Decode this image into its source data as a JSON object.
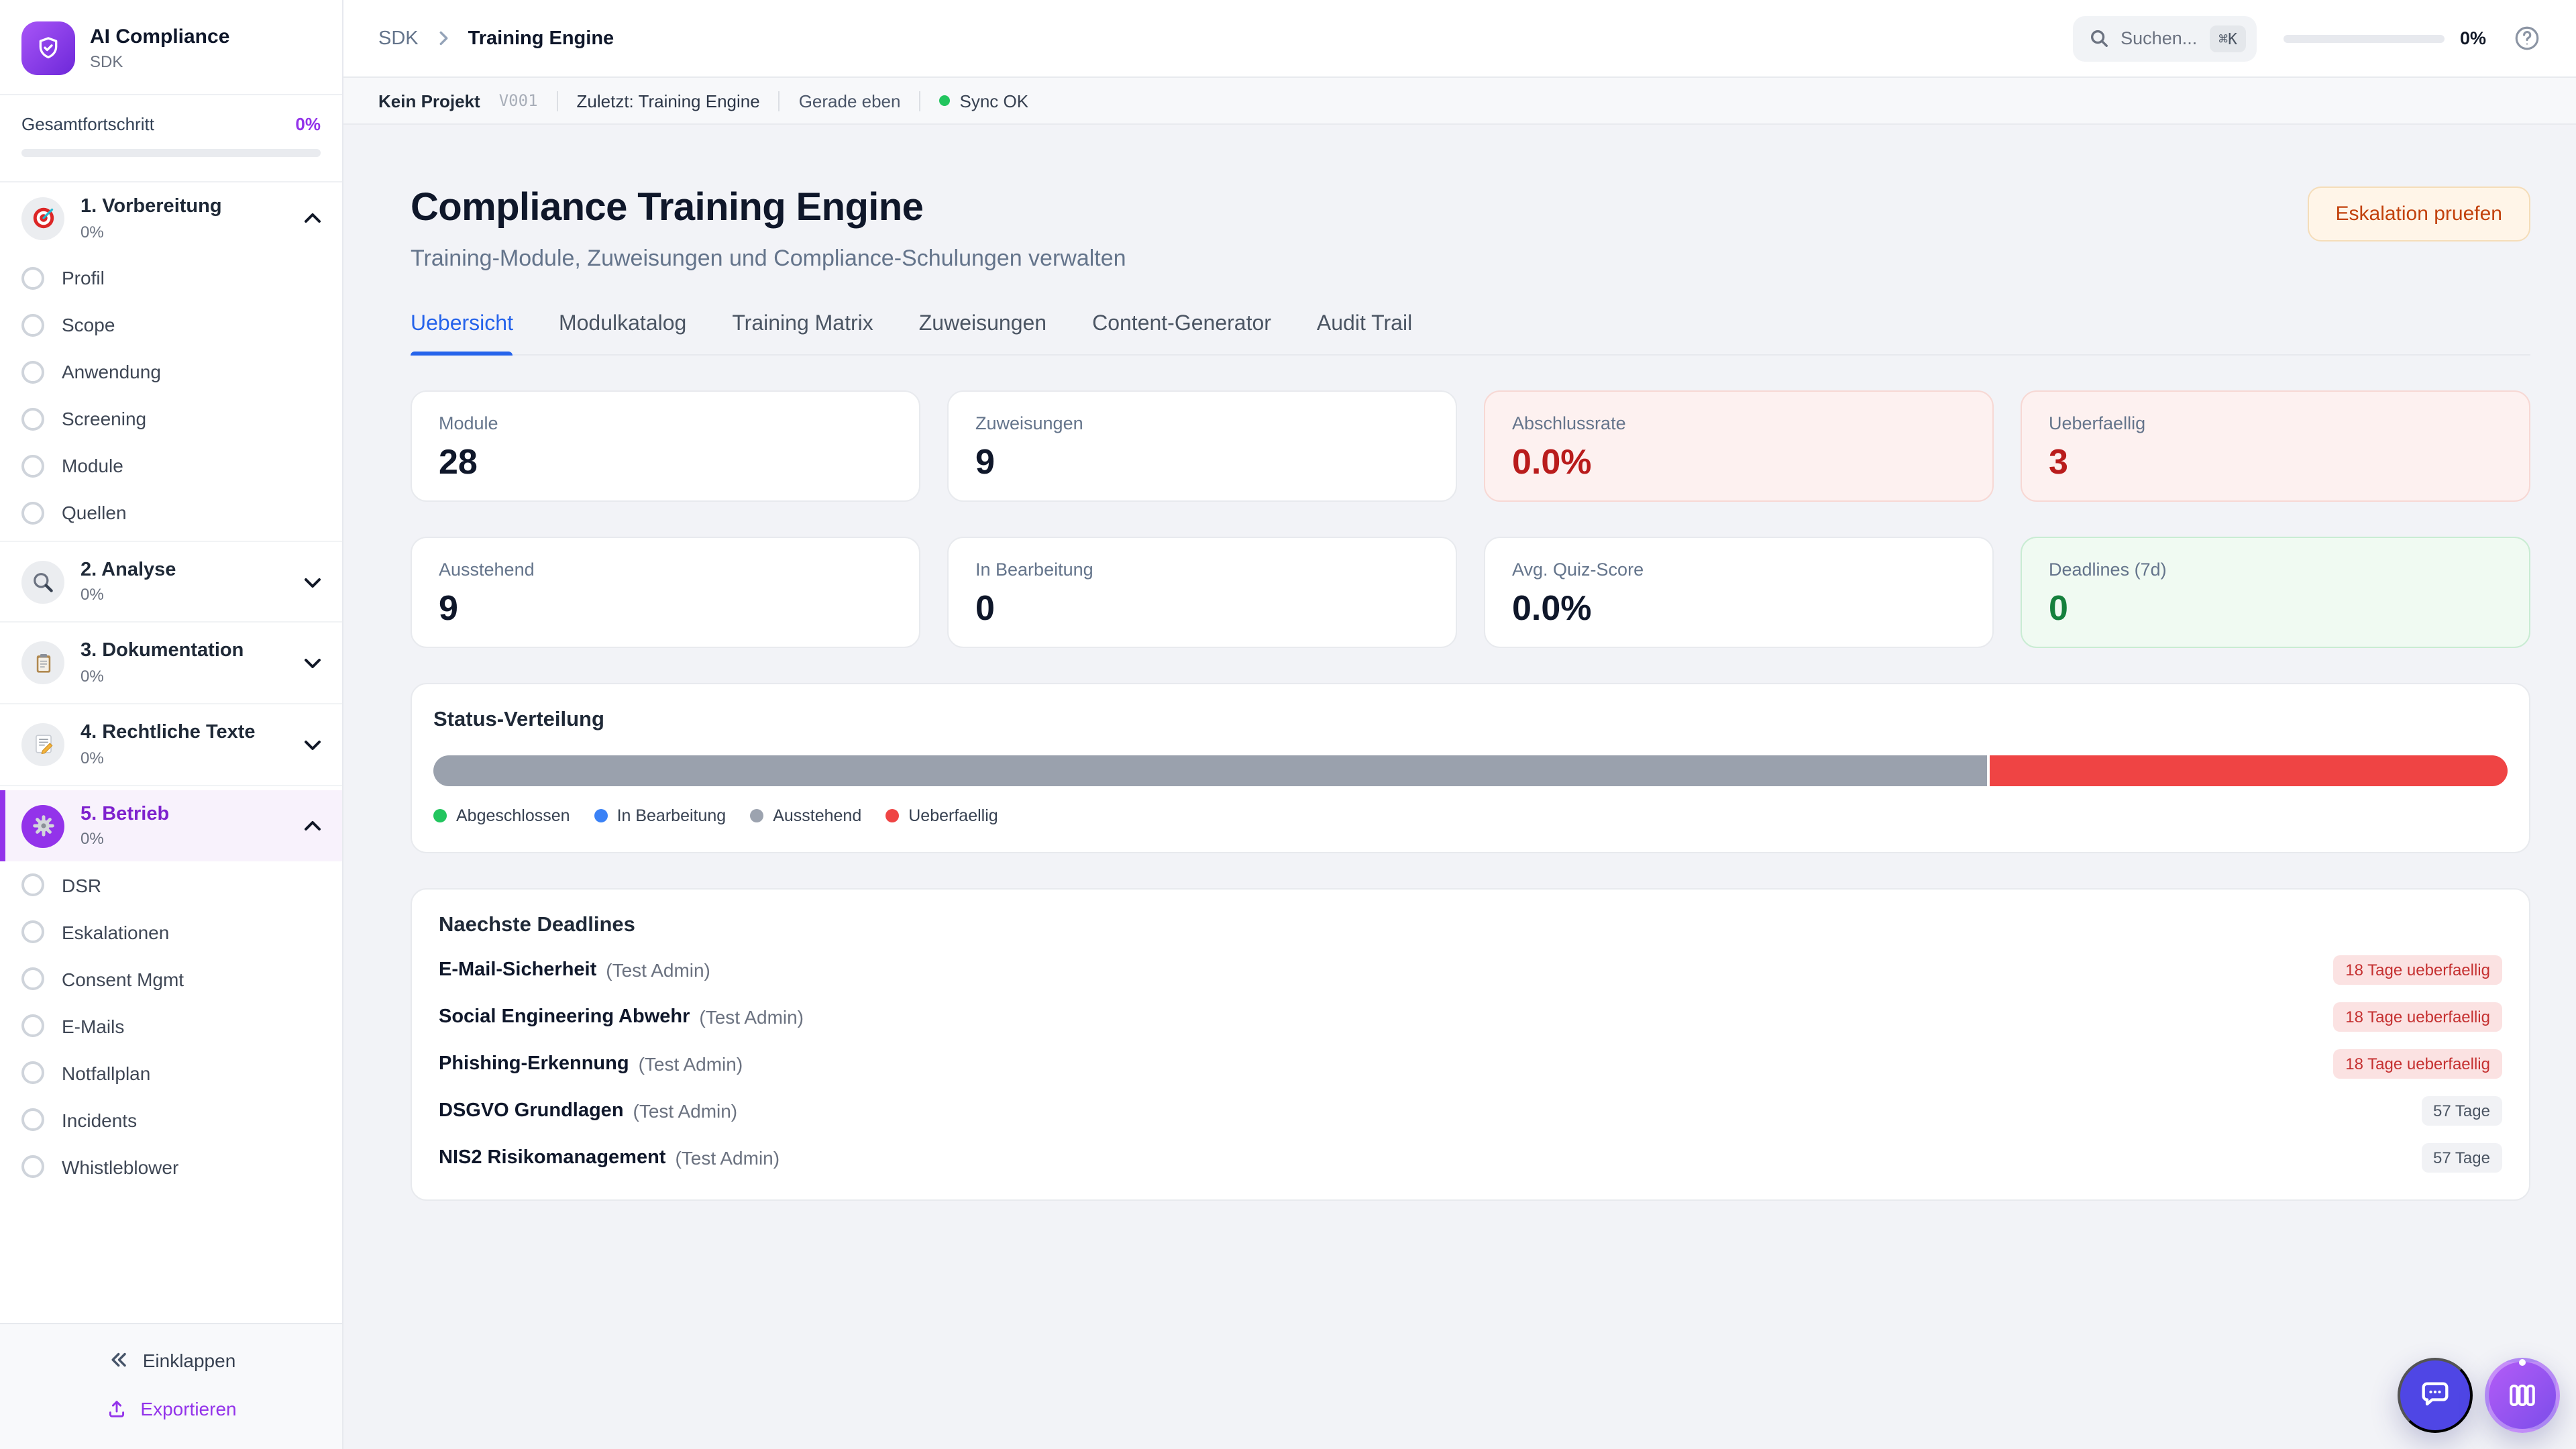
{
  "app": {
    "name": "AI Compliance",
    "subtitle": "SDK"
  },
  "sidebar": {
    "progress_label": "Gesamtfortschritt",
    "progress_value": "0%",
    "progress_percent": 0,
    "sections": [
      {
        "icon": "target",
        "label": "1. Vorbereitung",
        "percent": "0%",
        "expanded": true,
        "active": false,
        "items": [
          "Profil",
          "Scope",
          "Anwendung",
          "Screening",
          "Module",
          "Quellen"
        ]
      },
      {
        "icon": "magnifier",
        "label": "2. Analyse",
        "percent": "0%",
        "expanded": false,
        "active": false,
        "items": []
      },
      {
        "icon": "clipboard",
        "label": "3. Dokumentation",
        "percent": "0%",
        "expanded": false,
        "active": false,
        "items": []
      },
      {
        "icon": "memo",
        "label": "4. Rechtliche Texte",
        "percent": "0%",
        "expanded": false,
        "active": false,
        "items": []
      },
      {
        "icon": "gear",
        "label": "5. Betrieb",
        "percent": "0%",
        "expanded": true,
        "active": true,
        "items": [
          "DSR",
          "Eskalationen",
          "Consent Mgmt",
          "E-Mails",
          "Notfallplan",
          "Incidents",
          "Whistleblower"
        ]
      }
    ],
    "collapse_label": "Einklappen",
    "export_label": "Exportieren"
  },
  "header": {
    "breadcrumb_root": "SDK",
    "breadcrumb_current": "Training Engine",
    "search_placeholder": "Suchen...",
    "search_shortcut": "⌘K",
    "progress_value": "0%",
    "progress_percent": 0
  },
  "statusbar": {
    "project": "Kein Projekt",
    "version": "V001",
    "last_label": "Zuletzt: Training Engine",
    "time": "Gerade eben",
    "sync_label": "Sync OK",
    "sync_color": "#22c55e"
  },
  "page": {
    "title": "Compliance Training Engine",
    "subtitle": "Training-Module, Zuweisungen und Compliance-Schulungen verwalten",
    "action_button": "Eskalation pruefen",
    "tabs": [
      {
        "label": "Uebersicht",
        "active": true
      },
      {
        "label": "Modulkatalog",
        "active": false
      },
      {
        "label": "Training Matrix",
        "active": false
      },
      {
        "label": "Zuweisungen",
        "active": false
      },
      {
        "label": "Content-Generator",
        "active": false
      },
      {
        "label": "Audit Trail",
        "active": false
      }
    ]
  },
  "stats": [
    {
      "label": "Module",
      "value": "28",
      "variant": "default"
    },
    {
      "label": "Zuweisungen",
      "value": "9",
      "variant": "default"
    },
    {
      "label": "Abschlussrate",
      "value": "0.0%",
      "variant": "danger"
    },
    {
      "label": "Ueberfaellig",
      "value": "3",
      "variant": "danger"
    },
    {
      "label": "Ausstehend",
      "value": "9",
      "variant": "default"
    },
    {
      "label": "In Bearbeitung",
      "value": "0",
      "variant": "default"
    },
    {
      "label": "Avg. Quiz-Score",
      "value": "0.0%",
      "variant": "default"
    },
    {
      "label": "Deadlines (7d)",
      "value": "0",
      "variant": "success"
    }
  ],
  "status_distribution": {
    "title": "Status-Verteilung",
    "segments": [
      {
        "label": "Ausstehend",
        "percent": 75,
        "color": "#9aa1ad"
      },
      {
        "label": "Ueberfaellig",
        "percent": 25,
        "color": "#ef4444"
      }
    ],
    "legend": [
      {
        "label": "Abgeschlossen",
        "color": "#22c55e"
      },
      {
        "label": "In Bearbeitung",
        "color": "#3b82f6"
      },
      {
        "label": "Ausstehend",
        "color": "#9ca3af"
      },
      {
        "label": "Ueberfaellig",
        "color": "#ef4444"
      }
    ]
  },
  "deadlines": {
    "title": "Naechste Deadlines",
    "items": [
      {
        "module": "E-Mail-Sicherheit",
        "assignee": "(Test Admin)",
        "due": "18 Tage ueberfaellig",
        "variant": "danger"
      },
      {
        "module": "Social Engineering Abwehr",
        "assignee": "(Test Admin)",
        "due": "18 Tage ueberfaellig",
        "variant": "danger"
      },
      {
        "module": "Phishing-Erkennung",
        "assignee": "(Test Admin)",
        "due": "18 Tage ueberfaellig",
        "variant": "danger"
      },
      {
        "module": "DSGVO Grundlagen",
        "assignee": "(Test Admin)",
        "due": "57 Tage",
        "variant": "neutral"
      },
      {
        "module": "NIS2 Risikomanagement",
        "assignee": "(Test Admin)",
        "due": "57 Tage",
        "variant": "neutral"
      }
    ]
  },
  "fabs": [
    {
      "icon": "chat"
    },
    {
      "icon": "columns"
    }
  ]
}
